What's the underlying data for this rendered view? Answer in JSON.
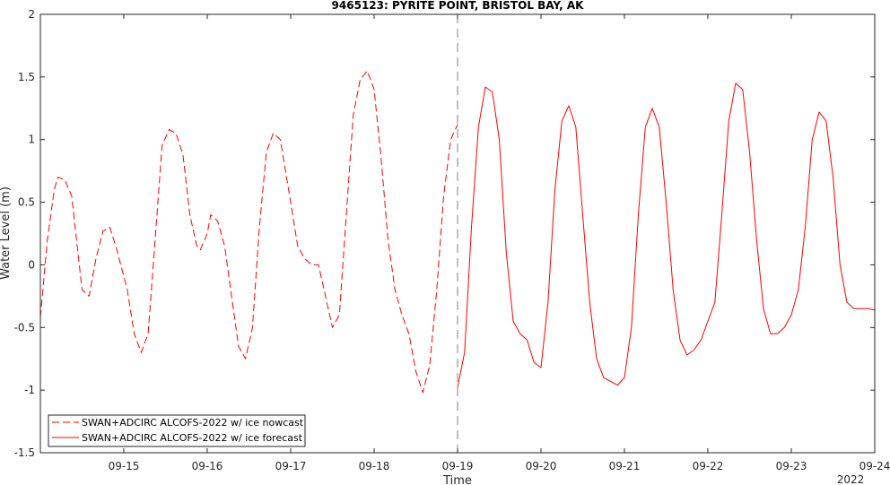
{
  "chart_data": {
    "type": "line",
    "title": "9465123: PYRITE POINT, BRISTOL BAY, AK",
    "xlabel": "Time",
    "ylabel": "Water Level (m)",
    "year_label": "2022",
    "xlim": [
      "2022-09-14T00:00",
      "2022-09-24T00:00"
    ],
    "ylim": [
      -1.5,
      2
    ],
    "yticks": [
      "-1.5",
      "-1",
      "-0.5",
      "0",
      "0.5",
      "1",
      "1.5",
      "2"
    ],
    "xticks": [
      "09-15",
      "09-16",
      "09-17",
      "09-18",
      "09-19",
      "09-20",
      "09-21",
      "09-22",
      "09-23",
      "09-24"
    ],
    "xtick_values": [
      "2022-09-15",
      "2022-09-16",
      "2022-09-17",
      "2022-09-18",
      "2022-09-19",
      "2022-09-20",
      "2022-09-21",
      "2022-09-22",
      "2022-09-23",
      "2022-09-24"
    ],
    "grid": false,
    "legend_position": "bottom-left",
    "color": "#ff0000",
    "marker_line": {
      "x": "2022-09-19T00:00",
      "style": "dashed",
      "color": "#808080"
    },
    "series": [
      {
        "name": "SWAN+ADCIRC ALCOFS-2022 w/ ice nowcast",
        "style": "dashed",
        "x": [
          "2022-09-14T00:00",
          "2022-09-14T02:00",
          "2022-09-14T04:00",
          "2022-09-14T05:00",
          "2022-09-14T07:00",
          "2022-09-14T09:00",
          "2022-09-14T11:00",
          "2022-09-14T12:00",
          "2022-09-14T14:00",
          "2022-09-14T16:00",
          "2022-09-14T18:00",
          "2022-09-14T20:00",
          "2022-09-14T22:00",
          "2022-09-15T01:00",
          "2022-09-15T03:00",
          "2022-09-15T05:00",
          "2022-09-15T07:00",
          "2022-09-15T09:00",
          "2022-09-15T11:00",
          "2022-09-15T13:00",
          "2022-09-15T15:00",
          "2022-09-15T17:00",
          "2022-09-15T19:00",
          "2022-09-15T21:00",
          "2022-09-15T22:00",
          "2022-09-16T00:00",
          "2022-09-16T01:00",
          "2022-09-16T03:00",
          "2022-09-16T05:00",
          "2022-09-16T07:00",
          "2022-09-16T09:00",
          "2022-09-16T11:00",
          "2022-09-16T13:00",
          "2022-09-16T15:00",
          "2022-09-16T17:00",
          "2022-09-16T19:00",
          "2022-09-16T21:00",
          "2022-09-17T00:00",
          "2022-09-17T02:00",
          "2022-09-17T04:00",
          "2022-09-17T06:00",
          "2022-09-17T08:00",
          "2022-09-17T10:00",
          "2022-09-17T12:00",
          "2022-09-17T14:00",
          "2022-09-17T16:00",
          "2022-09-17T18:00",
          "2022-09-17T20:00",
          "2022-09-17T22:00",
          "2022-09-18T00:00",
          "2022-09-18T02:00",
          "2022-09-18T04:00",
          "2022-09-18T06:00",
          "2022-09-18T08:00",
          "2022-09-18T10:00",
          "2022-09-18T12:00",
          "2022-09-18T14:00",
          "2022-09-18T16:00",
          "2022-09-18T18:00",
          "2022-09-18T20:00",
          "2022-09-18T22:00",
          "2022-09-19T00:00"
        ],
        "y": [
          -0.42,
          0.2,
          0.6,
          0.7,
          0.68,
          0.55,
          0.05,
          -0.2,
          -0.25,
          0.05,
          0.27,
          0.3,
          0.12,
          -0.2,
          -0.55,
          -0.7,
          -0.55,
          0.2,
          0.95,
          1.08,
          1.05,
          0.88,
          0.4,
          0.15,
          0.12,
          0.25,
          0.4,
          0.35,
          0.15,
          -0.25,
          -0.65,
          -0.75,
          -0.5,
          0.3,
          0.9,
          1.05,
          1.0,
          0.5,
          0.15,
          0.05,
          0.0,
          0.0,
          -0.25,
          -0.5,
          -0.4,
          0.4,
          1.2,
          1.48,
          1.55,
          1.4,
          0.85,
          0.2,
          -0.2,
          -0.4,
          -0.55,
          -0.85,
          -1.02,
          -0.8,
          -0.2,
          0.55,
          1.0,
          1.12
        ]
      },
      {
        "name": "SWAN+ADCIRC ALCOFS-2022 w/ ice forecast",
        "style": "solid",
        "x": [
          "2022-09-19T00:00",
          "2022-09-19T02:00",
          "2022-09-19T04:00",
          "2022-09-19T06:00",
          "2022-09-19T08:00",
          "2022-09-19T10:00",
          "2022-09-19T12:00",
          "2022-09-19T14:00",
          "2022-09-19T16:00",
          "2022-09-19T18:00",
          "2022-09-19T20:00",
          "2022-09-19T22:00",
          "2022-09-20T00:00",
          "2022-09-20T02:00",
          "2022-09-20T04:00",
          "2022-09-20T06:00",
          "2022-09-20T08:00",
          "2022-09-20T10:00",
          "2022-09-20T12:00",
          "2022-09-20T14:00",
          "2022-09-20T16:00",
          "2022-09-20T18:00",
          "2022-09-20T20:00",
          "2022-09-20T22:00",
          "2022-09-21T00:00",
          "2022-09-21T02:00",
          "2022-09-21T04:00",
          "2022-09-21T06:00",
          "2022-09-21T08:00",
          "2022-09-21T10:00",
          "2022-09-21T12:00",
          "2022-09-21T14:00",
          "2022-09-21T16:00",
          "2022-09-21T18:00",
          "2022-09-21T20:00",
          "2022-09-21T22:00",
          "2022-09-22T00:00",
          "2022-09-22T02:00",
          "2022-09-22T04:00",
          "2022-09-22T06:00",
          "2022-09-22T08:00",
          "2022-09-22T10:00",
          "2022-09-22T12:00",
          "2022-09-22T14:00",
          "2022-09-22T16:00",
          "2022-09-22T18:00",
          "2022-09-22T20:00",
          "2022-09-22T22:00",
          "2022-09-23T00:00",
          "2022-09-23T02:00",
          "2022-09-23T04:00",
          "2022-09-23T06:00",
          "2022-09-23T08:00",
          "2022-09-23T10:00",
          "2022-09-23T12:00",
          "2022-09-23T14:00",
          "2022-09-23T16:00",
          "2022-09-23T18:00",
          "2022-09-23T20:00",
          "2022-09-23T22:00",
          "2022-09-24T00:00"
        ],
        "y": [
          -0.98,
          -0.7,
          0.3,
          1.1,
          1.42,
          1.38,
          1.0,
          0.1,
          -0.45,
          -0.55,
          -0.6,
          -0.78,
          -0.82,
          -0.3,
          0.6,
          1.15,
          1.27,
          1.1,
          0.4,
          -0.3,
          -0.75,
          -0.9,
          -0.93,
          -0.96,
          -0.9,
          -0.5,
          0.4,
          1.1,
          1.25,
          1.1,
          0.5,
          -0.2,
          -0.6,
          -0.72,
          -0.68,
          -0.6,
          -0.45,
          -0.3,
          0.4,
          1.15,
          1.45,
          1.4,
          0.9,
          0.2,
          -0.35,
          -0.55,
          -0.55,
          -0.5,
          -0.4,
          -0.2,
          0.3,
          1.0,
          1.22,
          1.15,
          0.7,
          0.0,
          -0.3,
          -0.35,
          -0.35,
          -0.35,
          -0.36
        ]
      }
    ]
  }
}
